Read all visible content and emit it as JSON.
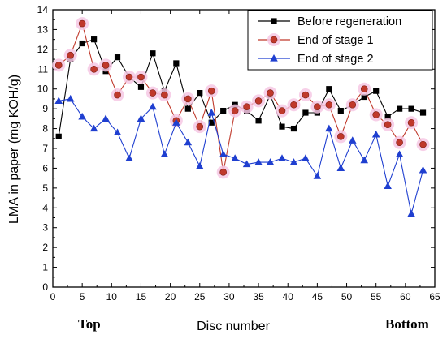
{
  "chart_data": {
    "type": "line",
    "title": "",
    "xlabel": "Disc number",
    "ylabel": "LMA in paper (mg KOH/g)",
    "xlim": [
      0,
      65
    ],
    "ylim": [
      0,
      14
    ],
    "x_ticks": [
      0,
      5,
      10,
      15,
      20,
      25,
      30,
      35,
      40,
      45,
      50,
      55,
      60,
      65
    ],
    "y_ticks": [
      0,
      1,
      2,
      3,
      4,
      5,
      6,
      7,
      8,
      9,
      10,
      11,
      12,
      13,
      14
    ],
    "annotations": [
      {
        "text": "Top",
        "position": "below x-axis, left end"
      },
      {
        "text": "Bottom",
        "position": "below x-axis, right end"
      }
    ],
    "legend": "top-right",
    "grid": false,
    "series": [
      {
        "name": "Before regeneration",
        "color": "#000000",
        "marker": "square",
        "x": [
          1,
          3,
          5,
          7,
          9,
          11,
          13,
          15,
          17,
          19,
          21,
          23,
          25,
          27,
          29,
          31,
          33,
          35,
          37,
          39,
          41,
          43,
          45,
          47,
          49,
          51,
          53,
          55,
          57,
          59,
          61,
          63
        ],
        "values": [
          7.6,
          11.5,
          12.3,
          12.5,
          10.9,
          11.6,
          10.6,
          10.1,
          11.8,
          9.9,
          11.3,
          9.0,
          9.8,
          8.3,
          8.9,
          9.2,
          8.9,
          8.4,
          9.7,
          8.1,
          8.0,
          8.8,
          8.8,
          10.0,
          8.9,
          9.2,
          9.6,
          9.9,
          8.6,
          9.0,
          9.0,
          8.8
        ]
      },
      {
        "name": "End of stage 1",
        "color": "#c0392b",
        "marker": "circle",
        "x": [
          1,
          3,
          5,
          7,
          9,
          11,
          13,
          15,
          17,
          19,
          21,
          23,
          25,
          27,
          29,
          31,
          33,
          35,
          37,
          39,
          41,
          43,
          45,
          47,
          49,
          51,
          53,
          55,
          57,
          59,
          61,
          63
        ],
        "values": [
          11.2,
          11.7,
          13.3,
          11.0,
          11.2,
          9.7,
          10.6,
          10.6,
          9.8,
          9.7,
          8.4,
          9.5,
          8.1,
          9.9,
          5.8,
          8.9,
          9.1,
          9.4,
          9.8,
          8.9,
          9.2,
          9.7,
          9.1,
          9.2,
          7.6,
          9.2,
          10.0,
          8.7,
          8.2,
          7.3,
          8.3,
          7.2
        ]
      },
      {
        "name": "End of stage 2",
        "color": "#1f3fd0",
        "marker": "triangle",
        "x": [
          1,
          3,
          5,
          7,
          9,
          11,
          13,
          15,
          17,
          19,
          21,
          23,
          25,
          27,
          29,
          31,
          33,
          35,
          37,
          39,
          41,
          43,
          45,
          47,
          49,
          51,
          53,
          55,
          57,
          59,
          61,
          63
        ],
        "values": [
          9.4,
          9.5,
          8.6,
          8.0,
          8.5,
          7.8,
          6.5,
          8.5,
          9.1,
          6.7,
          8.3,
          7.3,
          6.1,
          8.8,
          6.7,
          6.5,
          6.2,
          6.3,
          6.3,
          6.5,
          6.3,
          6.5,
          5.6,
          8.0,
          6.0,
          7.4,
          6.4,
          7.7,
          5.1,
          6.7,
          3.7,
          5.9
        ]
      }
    ]
  }
}
